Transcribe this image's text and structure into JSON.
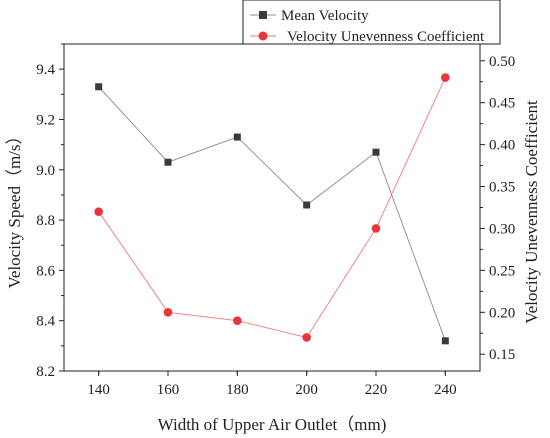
{
  "chart_data": {
    "type": "line",
    "title": "",
    "xlabel": "Width of Upper Air Outlet（mm)",
    "ylabel_left": "Velocity Speed（m/s）",
    "ylabel_right": "Velocity Unevenness Coefficient",
    "x": [
      140,
      160,
      180,
      200,
      220,
      240
    ],
    "xlim": [
      130,
      250
    ],
    "xticks": [
      "140",
      "160",
      "180",
      "200",
      "220",
      "240"
    ],
    "ylim_left": [
      8.2,
      9.5
    ],
    "yticks_left": [
      "8.2",
      "8.4",
      "8.6",
      "8.8",
      "9.0",
      "9.2",
      "9.4"
    ],
    "ylim_right": [
      0.13,
      0.52
    ],
    "yticks_right": [
      "0.15",
      "0.20",
      "0.25",
      "0.30",
      "0.35",
      "0.40",
      "0.45",
      "0.50"
    ],
    "series": [
      {
        "name": "Mean Velocity",
        "axis": "left",
        "marker": "square",
        "color": "#3a3a3a",
        "line_color": "#8c8c8c",
        "values": [
          9.33,
          9.03,
          9.13,
          8.86,
          9.07,
          8.32
        ]
      },
      {
        "name": "Velocity Unevenness Coefficient",
        "axis": "right",
        "marker": "circle",
        "color": "#e8343a",
        "line_color": "#f07a7e",
        "values": [
          0.32,
          0.2,
          0.19,
          0.17,
          0.3,
          0.48
        ]
      }
    ],
    "legend_position": "top-right",
    "grid": false
  }
}
